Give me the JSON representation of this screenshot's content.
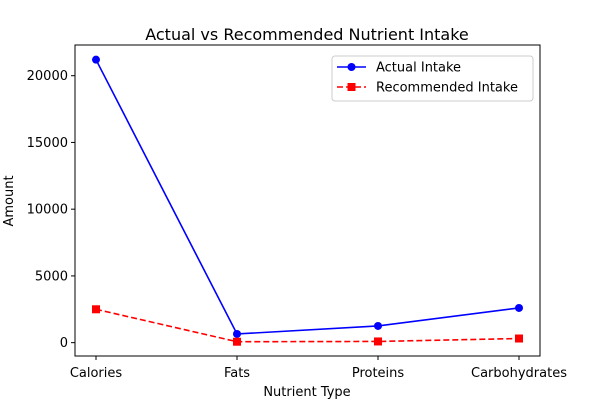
{
  "chart_data": {
    "type": "line",
    "title": "Actual vs Recommended Nutrient Intake",
    "xlabel": "Nutrient Type",
    "ylabel": "Amount",
    "categories": [
      "Calories",
      "Fats",
      "Proteins",
      "Carbohydrates"
    ],
    "ylim": [
      -1000,
      22300
    ],
    "yticks": [
      0,
      5000,
      10000,
      15000,
      20000
    ],
    "grid": false,
    "legend_position": "top-right",
    "series": [
      {
        "name": "Actual Intake",
        "values": [
          21200,
          650,
          1250,
          2600
        ],
        "color": "#0000ff",
        "marker": "circle",
        "linestyle": "solid"
      },
      {
        "name": "Recommended Intake",
        "values": [
          2500,
          70,
          90,
          310
        ],
        "color": "#ff0000",
        "marker": "square",
        "linestyle": "dashed"
      }
    ]
  }
}
